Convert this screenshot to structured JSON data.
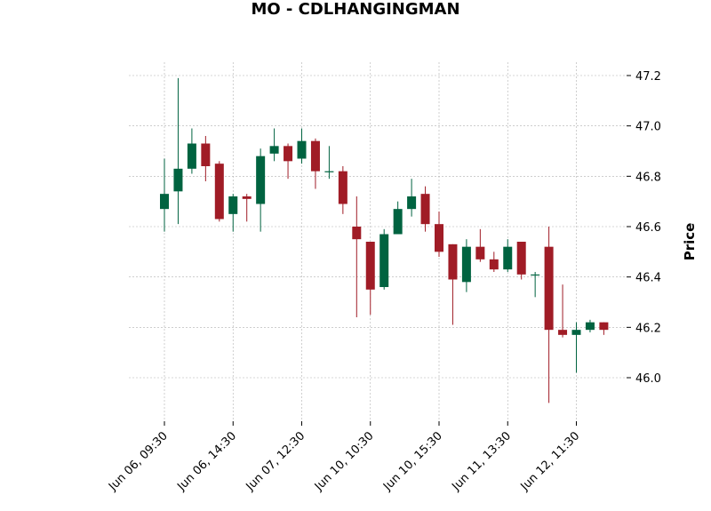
{
  "chart_data": {
    "type": "candlestick",
    "title": "MO - CDLHANGINGMAN",
    "xlabel": "",
    "ylabel": "Price",
    "ylim": [
      45.84,
      47.25
    ],
    "grid": true,
    "colors": {
      "up": "#006340",
      "down": "#a01c26",
      "grid": "#b0b0b0"
    },
    "y_ticks": [
      46.0,
      46.2,
      46.4,
      46.6,
      46.8,
      47.0,
      47.2
    ],
    "x_ticks": [
      {
        "index": 0,
        "label": "Jun 06, 09:30"
      },
      {
        "index": 5,
        "label": "Jun 06, 14:30"
      },
      {
        "index": 10,
        "label": "Jun 07, 12:30"
      },
      {
        "index": 15,
        "label": "Jun 10, 10:30"
      },
      {
        "index": 20,
        "label": "Jun 10, 15:30"
      },
      {
        "index": 25,
        "label": "Jun 11, 13:30"
      },
      {
        "index": 30,
        "label": "Jun 12, 11:30"
      }
    ],
    "candles": [
      {
        "o": 46.67,
        "h": 46.87,
        "l": 46.58,
        "c": 46.73
      },
      {
        "o": 46.74,
        "h": 47.19,
        "l": 46.61,
        "c": 46.83
      },
      {
        "o": 46.83,
        "h": 46.99,
        "l": 46.81,
        "c": 46.93
      },
      {
        "o": 46.93,
        "h": 46.96,
        "l": 46.78,
        "c": 46.84
      },
      {
        "o": 46.85,
        "h": 46.86,
        "l": 46.62,
        "c": 46.63
      },
      {
        "o": 46.65,
        "h": 46.73,
        "l": 46.58,
        "c": 46.72
      },
      {
        "o": 46.72,
        "h": 46.73,
        "l": 46.62,
        "c": 46.71
      },
      {
        "o": 46.69,
        "h": 46.91,
        "l": 46.58,
        "c": 46.88
      },
      {
        "o": 46.89,
        "h": 46.99,
        "l": 46.86,
        "c": 46.92
      },
      {
        "o": 46.92,
        "h": 46.93,
        "l": 46.79,
        "c": 46.86
      },
      {
        "o": 46.87,
        "h": 46.99,
        "l": 46.85,
        "c": 46.94
      },
      {
        "o": 46.94,
        "h": 46.95,
        "l": 46.75,
        "c": 46.82
      },
      {
        "o": 46.82,
        "h": 46.92,
        "l": 46.79,
        "c": 46.82
      },
      {
        "o": 46.82,
        "h": 46.84,
        "l": 46.65,
        "c": 46.69
      },
      {
        "o": 46.6,
        "h": 46.72,
        "l": 46.24,
        "c": 46.55
      },
      {
        "o": 46.54,
        "h": 46.54,
        "l": 46.25,
        "c": 46.35
      },
      {
        "o": 46.36,
        "h": 46.59,
        "l": 46.35,
        "c": 46.57
      },
      {
        "o": 46.57,
        "h": 46.7,
        "l": 46.57,
        "c": 46.67
      },
      {
        "o": 46.67,
        "h": 46.79,
        "l": 46.64,
        "c": 46.72
      },
      {
        "o": 46.73,
        "h": 46.76,
        "l": 46.58,
        "c": 46.61
      },
      {
        "o": 46.61,
        "h": 46.66,
        "l": 46.48,
        "c": 46.5
      },
      {
        "o": 46.53,
        "h": 46.53,
        "l": 46.21,
        "c": 46.39
      },
      {
        "o": 46.38,
        "h": 46.55,
        "l": 46.34,
        "c": 46.52
      },
      {
        "o": 46.52,
        "h": 46.59,
        "l": 46.46,
        "c": 46.47
      },
      {
        "o": 46.47,
        "h": 46.5,
        "l": 46.42,
        "c": 46.43
      },
      {
        "o": 46.43,
        "h": 46.55,
        "l": 46.42,
        "c": 46.52
      },
      {
        "o": 46.54,
        "h": 46.54,
        "l": 46.39,
        "c": 46.41
      },
      {
        "o": 46.41,
        "h": 46.42,
        "l": 46.32,
        "c": 46.41
      },
      {
        "o": 46.52,
        "h": 46.6,
        "l": 45.9,
        "c": 46.19
      },
      {
        "o": 46.19,
        "h": 46.37,
        "l": 46.16,
        "c": 46.17
      },
      {
        "o": 46.17,
        "h": 46.22,
        "l": 46.02,
        "c": 46.19
      },
      {
        "o": 46.19,
        "h": 46.23,
        "l": 46.18,
        "c": 46.22
      },
      {
        "o": 46.22,
        "h": 46.22,
        "l": 46.17,
        "c": 46.19
      }
    ]
  }
}
